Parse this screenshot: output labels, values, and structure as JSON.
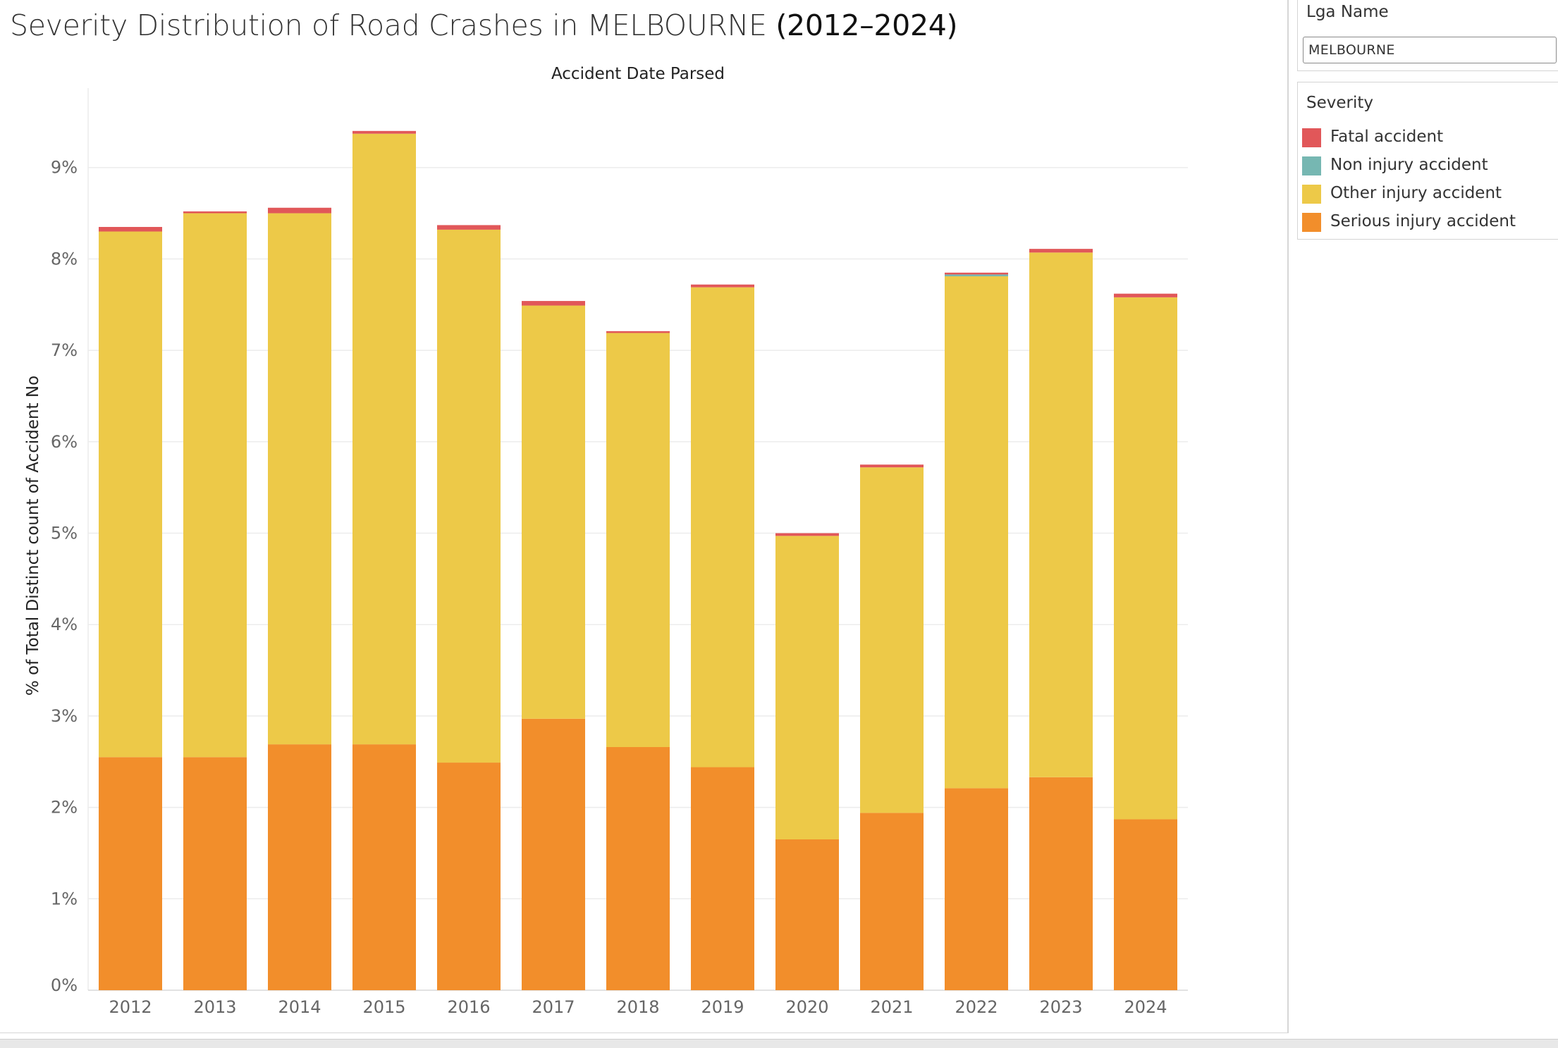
{
  "title": {
    "main": "Severity Distribution of Road Crashes in MELBOURNE",
    "years": "(2012–2024)"
  },
  "filter": {
    "title": "Lga Name",
    "value": "MELBOURNE"
  },
  "legend": {
    "title": "Severity",
    "items": [
      {
        "label": "Fatal accident",
        "color": "#e15759"
      },
      {
        "label": "Non injury accident",
        "color": "#76b7b2"
      },
      {
        "label": "Other injury accident",
        "color": "#edc948"
      },
      {
        "label": "Serious injury accident",
        "color": "#f28e2b"
      }
    ]
  },
  "chart_data": {
    "type": "bar",
    "stacked": true,
    "title": "Severity Distribution of Road Crashes in MELBOURNE (2012–2024)",
    "xlabel": "Accident Date Parsed",
    "ylabel": "% of Total Distinct count of Accident No",
    "ylim": [
      0,
      9.8
    ],
    "yticks": [
      "0%",
      "1%",
      "2%",
      "3%",
      "4%",
      "5%",
      "6%",
      "7%",
      "8%",
      "9%"
    ],
    "grid": true,
    "legend_position": "right",
    "categories": [
      "2012",
      "2013",
      "2014",
      "2015",
      "2016",
      "2017",
      "2018",
      "2019",
      "2020",
      "2021",
      "2022",
      "2023",
      "2024"
    ],
    "series": [
      {
        "name": "Serious injury accident",
        "color": "#f28e2b",
        "values": [
          2.55,
          2.55,
          2.69,
          2.69,
          2.49,
          2.97,
          2.66,
          2.44,
          1.65,
          1.94,
          2.21,
          2.33,
          1.87
        ]
      },
      {
        "name": "Other injury accident",
        "color": "#edc948",
        "values": [
          5.75,
          5.95,
          5.81,
          6.68,
          5.83,
          4.52,
          4.53,
          5.25,
          3.32,
          3.78,
          5.6,
          5.74,
          5.71
        ]
      },
      {
        "name": "Non injury accident",
        "color": "#76b7b2",
        "values": [
          0,
          0,
          0,
          0,
          0,
          0,
          0,
          0,
          0,
          0,
          0.02,
          0,
          0
        ]
      },
      {
        "name": "Fatal accident",
        "color": "#e15759",
        "values": [
          0.05,
          0.02,
          0.06,
          0.03,
          0.05,
          0.05,
          0.02,
          0.03,
          0.03,
          0.03,
          0.02,
          0.04,
          0.04
        ]
      }
    ]
  }
}
